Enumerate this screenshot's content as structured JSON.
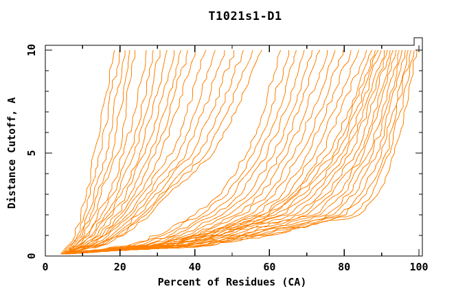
{
  "title": "T1021s1-D1",
  "axes": {
    "xlabel": "Percent of Residues (CA)",
    "ylabel": "Distance Cutoff, A",
    "x_tick_labels": [
      "0",
      "20",
      "40",
      "60",
      "80",
      "100"
    ],
    "y_tick_labels": [
      "0",
      "5",
      "10"
    ]
  },
  "chart_data": {
    "type": "line",
    "title": "T1021s1-D1",
    "xlabel": "Percent of Residues (CA)",
    "ylabel": "Distance Cutoff, A",
    "xlim": [
      0,
      100
    ],
    "ylim": [
      0,
      10
    ],
    "x_major_ticks": [
      0,
      20,
      40,
      60,
      80,
      100
    ],
    "x_minor_ticks": [
      10,
      30,
      50,
      70,
      90
    ],
    "y_major_ticks": [
      0,
      5,
      10
    ],
    "y_minor_ticks": [
      1,
      2,
      3,
      4,
      6,
      7,
      8,
      9
    ],
    "grid": false,
    "legend": "none",
    "line_color": "#FF8000",
    "frame_color": "#000000",
    "series_description": "cumulative percent of CA residues (x) under distance cutoff (y) for each model",
    "y_anchors": [
      0.1,
      0.5,
      1,
      2,
      3,
      5,
      7,
      10
    ],
    "curves_x": [
      [
        4.2,
        6.0,
        8.0,
        9.5,
        11.0,
        13.0,
        15.0,
        18.5
      ],
      [
        4.6,
        6.5,
        8.6,
        10.4,
        12.0,
        14.6,
        16.6,
        19.9
      ],
      [
        5.0,
        7.0,
        9.3,
        11.3,
        13.0,
        16.3,
        18.3,
        21.3
      ],
      [
        5.4,
        7.5,
        9.9,
        12.1,
        14.0,
        17.9,
        19.9,
        22.6
      ],
      [
        5.8,
        8.0,
        10.5,
        13.0,
        15.0,
        19.5,
        21.5,
        24.0
      ],
      [
        4.3,
        8.0,
        11.0,
        14.0,
        17.0,
        21.0,
        24.0,
        27.0
      ],
      [
        4.7,
        8.5,
        11.7,
        15.0,
        18.1,
        22.4,
        25.6,
        28.9
      ],
      [
        5.1,
        9.0,
        12.4,
        16.0,
        19.3,
        23.9,
        27.1,
        30.7
      ],
      [
        5.5,
        9.5,
        13.1,
        17.0,
        20.4,
        25.3,
        28.7,
        32.6
      ],
      [
        4.4,
        10.0,
        13.9,
        18.0,
        21.6,
        26.7,
        30.3,
        34.4
      ],
      [
        4.8,
        10.5,
        14.6,
        19.0,
        22.7,
        28.1,
        31.9,
        36.3
      ],
      [
        5.2,
        11.0,
        15.3,
        20.0,
        23.9,
        29.6,
        33.4,
        38.1
      ],
      [
        5.6,
        11.5,
        16.0,
        21.0,
        25.0,
        31.0,
        35.0,
        40.0
      ],
      [
        4.4,
        12.0,
        16.0,
        22.0,
        26.0,
        34.0,
        38.0,
        43.0
      ],
      [
        4.9,
        12.5,
        16.8,
        23.0,
        27.2,
        35.8,
        40.2,
        45.5
      ],
      [
        5.4,
        13.0,
        17.7,
        24.0,
        28.3,
        37.7,
        42.3,
        48.0
      ],
      [
        5.9,
        13.5,
        18.5,
        25.0,
        29.5,
        39.5,
        44.5,
        50.5
      ],
      [
        4.5,
        14.0,
        19.3,
        26.0,
        30.7,
        41.3,
        46.7,
        53.0
      ],
      [
        5.0,
        14.5,
        20.2,
        27.0,
        31.8,
        43.2,
        48.8,
        55.5
      ],
      [
        5.5,
        15.0,
        21.0,
        28.0,
        33.0,
        45.0,
        51.0,
        58.0
      ],
      [
        4.2,
        22.0,
        30.0,
        40.0,
        47.0,
        54.0,
        58.5,
        63.0
      ],
      [
        4.6,
        23.3,
        31.5,
        41.8,
        48.8,
        55.8,
        60.4,
        65.1
      ],
      [
        5.0,
        24.5,
        33.1,
        43.6,
        50.6,
        57.6,
        62.2,
        67.2
      ],
      [
        5.4,
        25.8,
        34.6,
        45.5,
        52.5,
        59.5,
        64.1,
        69.3
      ],
      [
        5.8,
        27.1,
        36.2,
        47.3,
        54.3,
        61.3,
        66.0,
        71.4
      ],
      [
        4.4,
        28.4,
        37.7,
        49.1,
        56.1,
        63.1,
        67.8,
        73.5
      ],
      [
        4.8,
        29.6,
        39.3,
        50.9,
        57.9,
        64.9,
        69.7,
        75.5
      ],
      [
        5.2,
        30.9,
        40.8,
        52.7,
        59.7,
        66.7,
        71.5,
        77.6
      ],
      [
        5.6,
        32.2,
        42.4,
        54.5,
        61.5,
        68.5,
        73.4,
        79.7
      ],
      [
        6.0,
        33.5,
        43.9,
        56.4,
        63.4,
        70.4,
        75.3,
        81.8
      ],
      [
        4.5,
        34.7,
        45.5,
        58.2,
        65.2,
        72.2,
        77.1,
        83.9
      ],
      [
        4.9,
        36.0,
        47.0,
        60.0,
        67.0,
        74.0,
        79.0,
        86.0
      ],
      [
        4.2,
        28.0,
        40.0,
        58.0,
        66.0,
        76.0,
        81.0,
        87.5
      ],
      [
        4.5,
        29.1,
        41.3,
        59.7,
        67.5,
        77.2,
        82.0,
        88.3
      ],
      [
        4.8,
        30.1,
        42.7,
        61.5,
        69.1,
        78.3,
        83.0,
        89.1
      ],
      [
        5.1,
        31.2,
        44.0,
        63.2,
        70.6,
        79.5,
        84.0,
        89.9
      ],
      [
        5.4,
        32.3,
        45.3,
        64.9,
        72.1,
        80.7,
        85.0,
        90.7
      ],
      [
        5.7,
        33.3,
        46.7,
        66.7,
        73.7,
        81.8,
        86.0,
        91.5
      ],
      [
        6.0,
        34.4,
        48.0,
        68.4,
        75.2,
        83.0,
        87.0,
        92.3
      ],
      [
        4.3,
        35.5,
        49.3,
        70.1,
        76.7,
        84.2,
        88.0,
        93.1
      ],
      [
        4.6,
        36.5,
        50.7,
        71.9,
        78.3,
        85.3,
        89.0,
        93.9
      ],
      [
        4.9,
        37.6,
        52.0,
        73.6,
        79.8,
        86.5,
        90.0,
        94.7
      ],
      [
        5.2,
        38.7,
        53.3,
        75.3,
        81.3,
        87.7,
        91.0,
        95.5
      ],
      [
        5.5,
        39.7,
        54.7,
        77.1,
        82.9,
        88.8,
        92.0,
        96.3
      ],
      [
        5.8,
        40.8,
        56.0,
        78.8,
        84.4,
        90.0,
        93.0,
        97.1
      ],
      [
        4.4,
        41.9,
        57.3,
        80.5,
        85.9,
        91.2,
        94.0,
        97.9
      ],
      [
        4.7,
        42.9,
        58.7,
        82.3,
        87.5,
        92.3,
        95.0,
        98.7
      ],
      [
        5.0,
        44.0,
        60.0,
        84.0,
        89.0,
        93.5,
        96.0,
        99.5
      ]
    ]
  }
}
